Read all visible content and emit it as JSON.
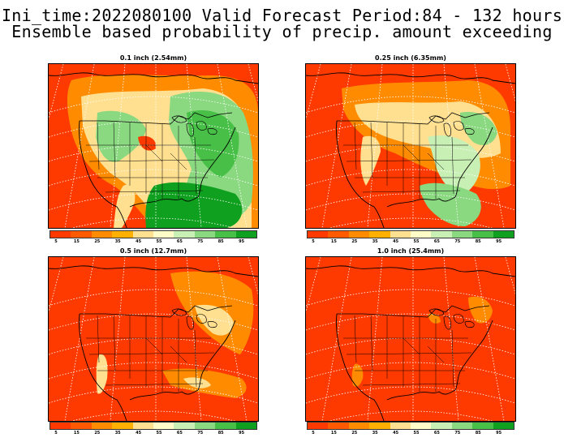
{
  "header": {
    "line1": "Ini_time:2022080100  Valid Forecast Period:84 - 132 hours",
    "line2": "Ensemble based probability of precip. amount exceeding"
  },
  "panels": [
    {
      "title": "0.1 inch (2.54mm)",
      "level": "wet"
    },
    {
      "title": "0.25 inch (6.35mm)",
      "level": "mid"
    },
    {
      "title": "0.5 inch (12.7mm)",
      "level": "dry"
    },
    {
      "title": "1.0 inch (25.4mm)",
      "level": "driest"
    }
  ],
  "colorbar": {
    "ticks": [
      "5",
      "15",
      "25",
      "35",
      "45",
      "55",
      "65",
      "75",
      "85",
      "95"
    ],
    "colors": [
      "#ff3a00",
      "#ff5a00",
      "#ff8c00",
      "#ffb000",
      "#ffe090",
      "#fffcc8",
      "#c8f0b4",
      "#8ad880",
      "#48c048",
      "#10a020"
    ]
  }
}
